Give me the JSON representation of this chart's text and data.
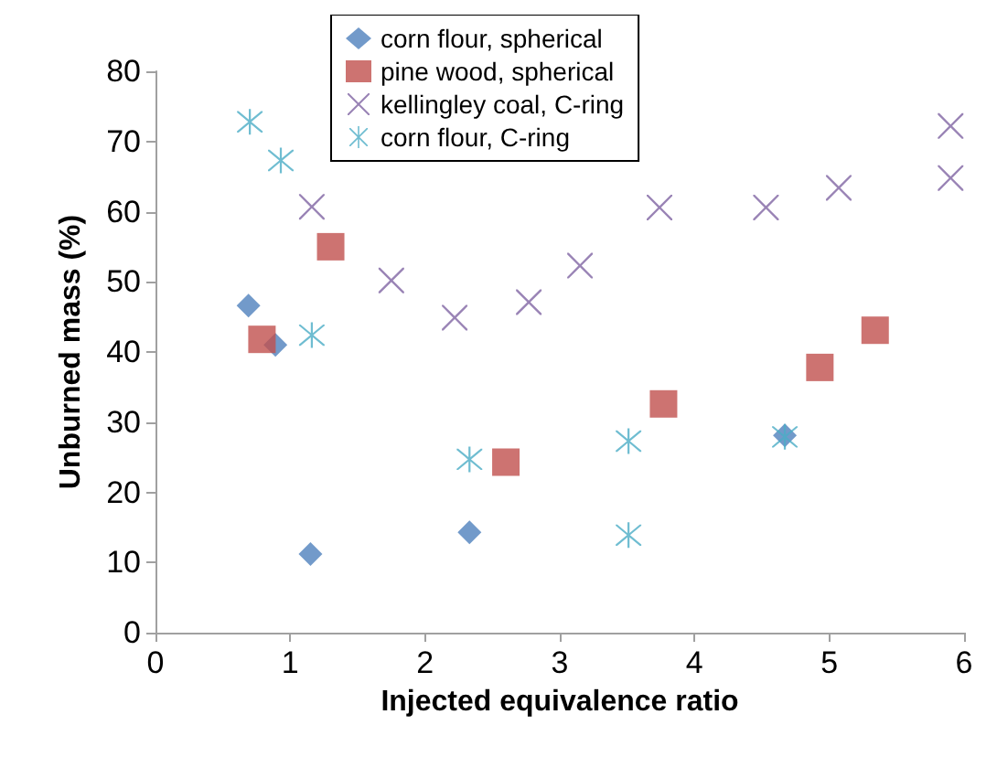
{
  "chart_data": {
    "type": "scatter",
    "xlabel": "Injected equivalence ratio",
    "ylabel": "Unburned mass (%)",
    "xlim": [
      0,
      6
    ],
    "xticks": [
      0,
      1,
      2,
      3,
      4,
      5,
      6
    ],
    "ylim": [
      0,
      80
    ],
    "yticks": [
      0,
      10,
      20,
      30,
      40,
      50,
      60,
      70,
      80
    ],
    "grid": false,
    "legend": "top",
    "series": [
      {
        "name": "corn flour, spherical",
        "color": "#4f81bd",
        "marker": "diamond",
        "x": [
          0.69,
          0.89,
          1.15,
          2.33,
          4.67
        ],
        "values": [
          46.6,
          41.0,
          11.2,
          14.3,
          28.1
        ]
      },
      {
        "name": "pine wood, spherical",
        "color": "#c0504d",
        "marker": "square",
        "x": [
          0.79,
          1.3,
          2.6,
          3.77,
          4.93,
          5.34
        ],
        "values": [
          41.8,
          55.0,
          24.3,
          32.6,
          37.8,
          43.1
        ]
      },
      {
        "name": "kellingley coal, C-ring",
        "color": "#8064a2",
        "marker": "cross",
        "x": [
          1.16,
          1.75,
          2.22,
          2.77,
          3.15,
          3.74,
          4.53,
          5.07,
          5.9,
          5.9
        ],
        "values": [
          60.7,
          50.2,
          44.9,
          47.1,
          52.3,
          60.6,
          60.6,
          63.4,
          64.8,
          72.2
        ]
      },
      {
        "name": "corn flour, C-ring",
        "color": "#4bacc6",
        "marker": "star",
        "x": [
          0.7,
          0.93,
          1.16,
          2.33,
          3.51,
          3.51,
          4.67
        ],
        "values": [
          72.8,
          67.3,
          42.4,
          24.7,
          27.3,
          13.9,
          27.9
        ]
      }
    ]
  }
}
